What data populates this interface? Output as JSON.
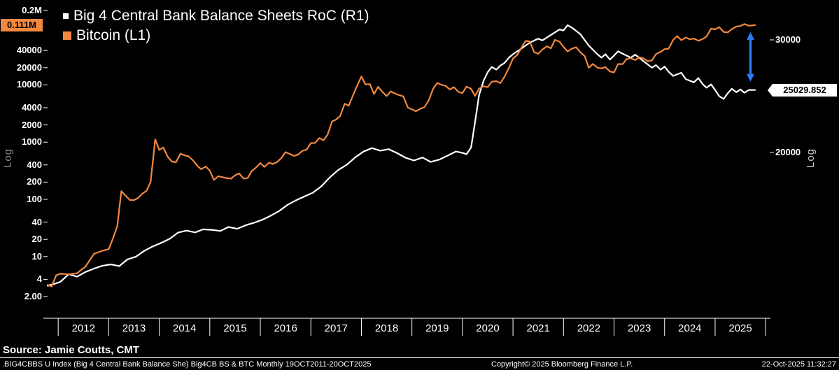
{
  "colors": {
    "background": "#000000",
    "big4_line": "#FFFFFF",
    "bitcoin_line": "#F2883F",
    "arrow_blue": "#2D7BF4",
    "axis_text": "#FFFFFF",
    "log_label_left": "#8A8A8A",
    "log_label_right": "#C8C8C8"
  },
  "legend": {
    "items": [
      {
        "label": "Big 4 Central Bank Balance Sheets RoC (R1)",
        "color": "#FFFFFF"
      },
      {
        "label": "Bitcoin (L1)",
        "color": "#F2883F"
      }
    ]
  },
  "source_line": "Source: Jamie Coutts, CMT",
  "footer": {
    "left": ".BIG4CBBS U Index (Big 4 Central Bank Balance She) Big4CB BS & BTC Monthly 19OCT2011-20OCT2025",
    "center": "Copyright© 2025 Bloomberg Finance L.P.",
    "right": "22-Oct-2025 11:32:27"
  },
  "chart_data": {
    "type": "line",
    "title": "Big 4 Central Bank Balance Sheets RoC vs Bitcoin",
    "x_axis": {
      "range_years": [
        2011.79,
        2025.79
      ],
      "tick_labels": [
        "2012",
        "2013",
        "2014",
        "2015",
        "2016",
        "2017",
        "2018",
        "2019",
        "2020",
        "2021",
        "2022",
        "2023",
        "2024",
        "2025"
      ]
    },
    "left_axis": {
      "scale": "log",
      "scale_label": "Log",
      "series": "Bitcoin (L1)",
      "tick_labels": [
        "0.2M",
        "40000",
        "20000",
        "10000",
        "4000",
        "2000",
        "1000",
        "400",
        "200",
        "100",
        "40",
        "20",
        "10",
        "4",
        "2.00"
      ],
      "tick_values": [
        200000,
        40000,
        20000,
        10000,
        4000,
        2000,
        1000,
        400,
        200,
        100,
        40,
        20,
        10,
        4,
        2
      ],
      "last_value_label": "0.111M",
      "last_value": 111000
    },
    "right_axis": {
      "scale": "log",
      "scale_label": "Log",
      "series": "Big 4 Central Bank Balance Sheets RoC (R1)",
      "tick_labels": [
        "30000",
        "20000"
      ],
      "tick_values": [
        30000,
        20000
      ],
      "last_value_label": "25029.852",
      "last_value": 25029.852
    },
    "series": [
      {
        "name": "Big 4 Central Bank Balance Sheets RoC (R1)",
        "axis": "right",
        "color": "#FFFFFF",
        "points": [
          [
            2011.79,
            12350
          ],
          [
            2011.92,
            12430
          ],
          [
            2012.04,
            12520
          ],
          [
            2012.21,
            12880
          ],
          [
            2012.37,
            12760
          ],
          [
            2012.54,
            12980
          ],
          [
            2012.71,
            13140
          ],
          [
            2012.87,
            13270
          ],
          [
            2013.04,
            13340
          ],
          [
            2013.21,
            13260
          ],
          [
            2013.37,
            13580
          ],
          [
            2013.54,
            13720
          ],
          [
            2013.71,
            14020
          ],
          [
            2013.87,
            14230
          ],
          [
            2014.04,
            14420
          ],
          [
            2014.21,
            14640
          ],
          [
            2014.37,
            14960
          ],
          [
            2014.54,
            15070
          ],
          [
            2014.71,
            14970
          ],
          [
            2014.87,
            15140
          ],
          [
            2015.04,
            15110
          ],
          [
            2015.21,
            15050
          ],
          [
            2015.37,
            15270
          ],
          [
            2015.54,
            15170
          ],
          [
            2015.71,
            15360
          ],
          [
            2015.87,
            15500
          ],
          [
            2016.04,
            15670
          ],
          [
            2016.21,
            15910
          ],
          [
            2016.37,
            16170
          ],
          [
            2016.54,
            16540
          ],
          [
            2016.71,
            16820
          ],
          [
            2016.87,
            17040
          ],
          [
            2017.04,
            17280
          ],
          [
            2017.21,
            17690
          ],
          [
            2017.37,
            18250
          ],
          [
            2017.54,
            18750
          ],
          [
            2017.71,
            19110
          ],
          [
            2017.87,
            19610
          ],
          [
            2018.04,
            20040
          ],
          [
            2018.21,
            20300
          ],
          [
            2018.37,
            20110
          ],
          [
            2018.54,
            20220
          ],
          [
            2018.71,
            19930
          ],
          [
            2018.87,
            19610
          ],
          [
            2019.04,
            19410
          ],
          [
            2019.21,
            19620
          ],
          [
            2019.37,
            19310
          ],
          [
            2019.54,
            19470
          ],
          [
            2019.71,
            19760
          ],
          [
            2019.87,
            20050
          ],
          [
            2020.0,
            19950
          ],
          [
            2020.08,
            19860
          ],
          [
            2020.17,
            20340
          ],
          [
            2020.25,
            22300
          ],
          [
            2020.33,
            24600
          ],
          [
            2020.42,
            25900
          ],
          [
            2020.5,
            26700
          ],
          [
            2020.58,
            27200
          ],
          [
            2020.67,
            26950
          ],
          [
            2020.75,
            27340
          ],
          [
            2020.83,
            27590
          ],
          [
            2020.92,
            28140
          ],
          [
            2021.0,
            28490
          ],
          [
            2021.17,
            29090
          ],
          [
            2021.33,
            29690
          ],
          [
            2021.5,
            30140
          ],
          [
            2021.58,
            29940
          ],
          [
            2021.75,
            30540
          ],
          [
            2021.92,
            31140
          ],
          [
            2022.0,
            31040
          ],
          [
            2022.08,
            31640
          ],
          [
            2022.17,
            31340
          ],
          [
            2022.33,
            30640
          ],
          [
            2022.5,
            29390
          ],
          [
            2022.67,
            28490
          ],
          [
            2022.75,
            28140
          ],
          [
            2022.83,
            28490
          ],
          [
            2022.92,
            27940
          ],
          [
            2023.0,
            28340
          ],
          [
            2023.08,
            28790
          ],
          [
            2023.17,
            28540
          ],
          [
            2023.33,
            28140
          ],
          [
            2023.42,
            28440
          ],
          [
            2023.58,
            27790
          ],
          [
            2023.75,
            27140
          ],
          [
            2023.83,
            27390
          ],
          [
            2023.92,
            26940
          ],
          [
            2024.0,
            27240
          ],
          [
            2024.08,
            26740
          ],
          [
            2024.17,
            26340
          ],
          [
            2024.33,
            26640
          ],
          [
            2024.42,
            26040
          ],
          [
            2024.58,
            25740
          ],
          [
            2024.67,
            26140
          ],
          [
            2024.75,
            25590
          ],
          [
            2024.83,
            25240
          ],
          [
            2024.92,
            25540
          ],
          [
            2025.0,
            25040
          ],
          [
            2025.08,
            24490
          ],
          [
            2025.17,
            24240
          ],
          [
            2025.25,
            24740
          ],
          [
            2025.33,
            25140
          ],
          [
            2025.42,
            24840
          ],
          [
            2025.5,
            25090
          ],
          [
            2025.58,
            24790
          ],
          [
            2025.67,
            25040
          ],
          [
            2025.79,
            25029.852
          ]
        ]
      },
      {
        "name": "Bitcoin (L1)",
        "axis": "left",
        "color": "#F2883F",
        "points": [
          [
            2011.79,
            3.2
          ],
          [
            2011.87,
            3.0
          ],
          [
            2011.96,
            4.7
          ],
          [
            2012.04,
            5.0
          ],
          [
            2012.21,
            4.9
          ],
          [
            2012.37,
            5.1
          ],
          [
            2012.54,
            6.7
          ],
          [
            2012.71,
            11.2
          ],
          [
            2012.87,
            12.6
          ],
          [
            2013.0,
            13.5
          ],
          [
            2013.08,
            20.4
          ],
          [
            2013.17,
            34.3
          ],
          [
            2013.25,
            139
          ],
          [
            2013.33,
            117
          ],
          [
            2013.42,
            97
          ],
          [
            2013.5,
            97
          ],
          [
            2013.58,
            106
          ],
          [
            2013.67,
            127
          ],
          [
            2013.75,
            141
          ],
          [
            2013.83,
            204
          ],
          [
            2013.92,
            1120
          ],
          [
            2014.0,
            732
          ],
          [
            2014.08,
            805
          ],
          [
            2014.17,
            550
          ],
          [
            2014.25,
            458
          ],
          [
            2014.33,
            445
          ],
          [
            2014.42,
            628
          ],
          [
            2014.5,
            590
          ],
          [
            2014.58,
            565
          ],
          [
            2014.67,
            477
          ],
          [
            2014.75,
            388
          ],
          [
            2014.83,
            337
          ],
          [
            2014.92,
            375
          ],
          [
            2015.0,
            318
          ],
          [
            2015.08,
            218
          ],
          [
            2015.17,
            254
          ],
          [
            2015.25,
            244
          ],
          [
            2015.33,
            236
          ],
          [
            2015.42,
            230
          ],
          [
            2015.5,
            263
          ],
          [
            2015.58,
            284
          ],
          [
            2015.67,
            230
          ],
          [
            2015.75,
            237
          ],
          [
            2015.83,
            312
          ],
          [
            2015.92,
            362
          ],
          [
            2016.0,
            430
          ],
          [
            2016.08,
            369
          ],
          [
            2016.17,
            437
          ],
          [
            2016.25,
            416
          ],
          [
            2016.33,
            449
          ],
          [
            2016.42,
            532
          ],
          [
            2016.5,
            670
          ],
          [
            2016.58,
            624
          ],
          [
            2016.67,
            573
          ],
          [
            2016.75,
            610
          ],
          [
            2016.83,
            701
          ],
          [
            2016.92,
            745
          ],
          [
            2017.0,
            963
          ],
          [
            2017.08,
            965
          ],
          [
            2017.17,
            1180
          ],
          [
            2017.25,
            1080
          ],
          [
            2017.33,
            1350
          ],
          [
            2017.42,
            2300
          ],
          [
            2017.5,
            2480
          ],
          [
            2017.58,
            2870
          ],
          [
            2017.67,
            4700
          ],
          [
            2017.75,
            4340
          ],
          [
            2017.83,
            6450
          ],
          [
            2017.92,
            9900
          ],
          [
            2018.0,
            14100
          ],
          [
            2018.08,
            10200
          ],
          [
            2018.17,
            10300
          ],
          [
            2018.25,
            6930
          ],
          [
            2018.33,
            9240
          ],
          [
            2018.42,
            7490
          ],
          [
            2018.5,
            6400
          ],
          [
            2018.58,
            7730
          ],
          [
            2018.67,
            7040
          ],
          [
            2018.75,
            6620
          ],
          [
            2018.83,
            6300
          ],
          [
            2018.92,
            4020
          ],
          [
            2019.0,
            3740
          ],
          [
            2019.08,
            3460
          ],
          [
            2019.17,
            3850
          ],
          [
            2019.25,
            4100
          ],
          [
            2019.33,
            5320
          ],
          [
            2019.42,
            8560
          ],
          [
            2019.5,
            10820
          ],
          [
            2019.58,
            10080
          ],
          [
            2019.67,
            9590
          ],
          [
            2019.75,
            8310
          ],
          [
            2019.83,
            9150
          ],
          [
            2019.92,
            7560
          ],
          [
            2020.0,
            7190
          ],
          [
            2020.08,
            9350
          ],
          [
            2020.17,
            8540
          ],
          [
            2020.25,
            6440
          ],
          [
            2020.33,
            8630
          ],
          [
            2020.42,
            9450
          ],
          [
            2020.5,
            9140
          ],
          [
            2020.58,
            11350
          ],
          [
            2020.67,
            11650
          ],
          [
            2020.75,
            10780
          ],
          [
            2020.83,
            13800
          ],
          [
            2020.92,
            19700
          ],
          [
            2021.0,
            29000
          ],
          [
            2021.08,
            33110
          ],
          [
            2021.17,
            45240
          ],
          [
            2021.25,
            58800
          ],
          [
            2021.33,
            57750
          ],
          [
            2021.42,
            37330
          ],
          [
            2021.5,
            35040
          ],
          [
            2021.58,
            41460
          ],
          [
            2021.67,
            47160
          ],
          [
            2021.75,
            43790
          ],
          [
            2021.83,
            61320
          ],
          [
            2021.92,
            57010
          ],
          [
            2022.0,
            46220
          ],
          [
            2022.08,
            38480
          ],
          [
            2022.17,
            43190
          ],
          [
            2022.25,
            45540
          ],
          [
            2022.33,
            37650
          ],
          [
            2022.42,
            31790
          ],
          [
            2022.5,
            19940
          ],
          [
            2022.58,
            23300
          ],
          [
            2022.67,
            20050
          ],
          [
            2022.75,
            19420
          ],
          [
            2022.83,
            20490
          ],
          [
            2022.92,
            17170
          ],
          [
            2023.0,
            16540
          ],
          [
            2023.08,
            23130
          ],
          [
            2023.17,
            23140
          ],
          [
            2023.25,
            28470
          ],
          [
            2023.33,
            29230
          ],
          [
            2023.42,
            27220
          ],
          [
            2023.5,
            30480
          ],
          [
            2023.58,
            29230
          ],
          [
            2023.67,
            25940
          ],
          [
            2023.75,
            26970
          ],
          [
            2023.83,
            34670
          ],
          [
            2023.92,
            37720
          ],
          [
            2024.0,
            42270
          ],
          [
            2024.08,
            42950
          ],
          [
            2024.17,
            61200
          ],
          [
            2024.25,
            71330
          ],
          [
            2024.33,
            60640
          ],
          [
            2024.42,
            67540
          ],
          [
            2024.5,
            62680
          ],
          [
            2024.58,
            64630
          ],
          [
            2024.67,
            59120
          ],
          [
            2024.75,
            63330
          ],
          [
            2024.83,
            70220
          ],
          [
            2024.92,
            96450
          ],
          [
            2025.0,
            93430
          ],
          [
            2025.08,
            102430
          ],
          [
            2025.17,
            84380
          ],
          [
            2025.25,
            82550
          ],
          [
            2025.33,
            94210
          ],
          [
            2025.42,
            104640
          ],
          [
            2025.5,
            107170
          ],
          [
            2025.58,
            115760
          ],
          [
            2025.67,
            108240
          ],
          [
            2025.79,
            111000
          ]
        ]
      }
    ],
    "annotation": {
      "type": "vertical-double-arrow",
      "color": "#2D7BF4",
      "year": 2025.7,
      "between": [
        "Bitcoin (L1)",
        "Big 4 Central Bank Balance Sheets RoC (R1)"
      ]
    }
  }
}
